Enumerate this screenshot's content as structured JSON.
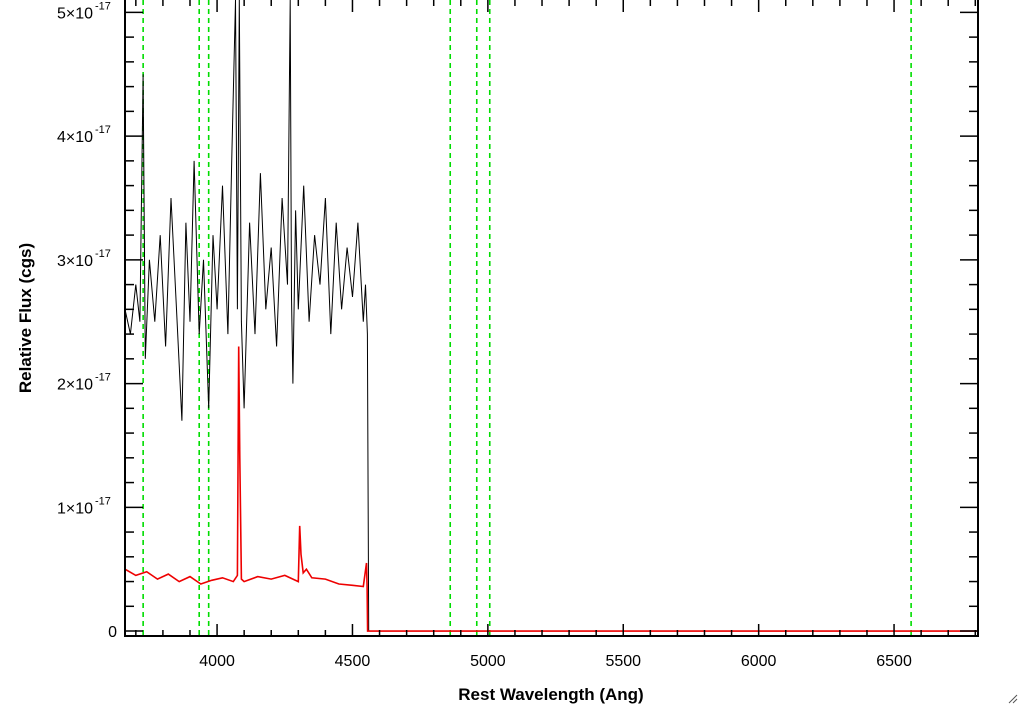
{
  "chart_data": {
    "type": "line",
    "xlabel": "Rest Wavelength (Ang)",
    "ylabel": "Relative Flux (cgs)",
    "xlim": [
      3660,
      6810
    ],
    "ylim": [
      -0.04,
      5.1
    ],
    "y_unit_exponent": -17,
    "grid": false,
    "legend": "none",
    "x_ticks": [
      {
        "value": 4000,
        "label": "4000"
      },
      {
        "value": 4500,
        "label": "4500"
      },
      {
        "value": 5000,
        "label": "5000"
      },
      {
        "value": 5500,
        "label": "5500"
      },
      {
        "value": 6000,
        "label": "6000"
      },
      {
        "value": 6500,
        "label": "6500"
      }
    ],
    "y_ticks": [
      {
        "value": 0,
        "label": "0"
      },
      {
        "value": 1,
        "label": "1×10",
        "exp": "-17"
      },
      {
        "value": 2,
        "label": "2×10",
        "exp": "-17"
      },
      {
        "value": 3,
        "label": "3×10",
        "exp": "-17"
      },
      {
        "value": 4,
        "label": "4×10",
        "exp": "-17"
      },
      {
        "value": 5,
        "label": "5×10",
        "exp": "-17"
      }
    ],
    "reference_lines": {
      "color": "#00dd00",
      "style": "dashed",
      "x": [
        3727,
        3934,
        3969,
        4861,
        4959,
        5007,
        6563
      ]
    },
    "series": [
      {
        "color": "#000000",
        "x": [
          3660,
          3680,
          3700,
          3715,
          3727,
          3735,
          3750,
          3770,
          3790,
          3810,
          3830,
          3850,
          3870,
          3885,
          3900,
          3915,
          3934,
          3950,
          3969,
          3985,
          4000,
          4020,
          4040,
          4055,
          4068,
          4075,
          4082,
          4090,
          4100,
          4120,
          4140,
          4160,
          4180,
          4200,
          4220,
          4240,
          4260,
          4270,
          4275,
          4280,
          4290,
          4300,
          4320,
          4340,
          4360,
          4380,
          4400,
          4420,
          4440,
          4460,
          4480,
          4500,
          4520,
          4540,
          4548,
          4555,
          4560
        ],
        "y": [
          2.6,
          2.4,
          2.8,
          2.5,
          4.5,
          2.2,
          3.0,
          2.5,
          3.2,
          2.3,
          3.5,
          2.6,
          1.7,
          3.3,
          2.5,
          3.8,
          2.4,
          3.0,
          1.8,
          3.2,
          2.6,
          3.6,
          2.4,
          3.9,
          5.1,
          2.6,
          5.1,
          2.5,
          1.8,
          3.3,
          2.4,
          3.7,
          2.6,
          3.1,
          2.3,
          3.5,
          2.8,
          5.1,
          2.7,
          2.0,
          3.4,
          2.6,
          3.6,
          2.5,
          3.2,
          2.8,
          3.5,
          2.4,
          3.3,
          2.6,
          3.1,
          2.7,
          3.3,
          2.5,
          2.8,
          2.4,
          0.0
        ]
      },
      {
        "color": "#ee0000",
        "x": [
          3660,
          3700,
          3740,
          3780,
          3820,
          3860,
          3900,
          3940,
          3980,
          4020,
          4060,
          4075,
          4080,
          4084,
          4090,
          4100,
          4150,
          4200,
          4250,
          4300,
          4305,
          4310,
          4318,
          4330,
          4350,
          4400,
          4450,
          4500,
          4540,
          4552,
          4554,
          4556,
          4560,
          6810
        ],
        "y": [
          0.5,
          0.45,
          0.48,
          0.42,
          0.46,
          0.4,
          0.44,
          0.38,
          0.41,
          0.43,
          0.4,
          0.45,
          2.3,
          1.4,
          0.42,
          0.4,
          0.44,
          0.42,
          0.45,
          0.4,
          0.85,
          0.62,
          0.47,
          0.5,
          0.43,
          0.42,
          0.38,
          0.37,
          0.36,
          0.55,
          0.36,
          0.0,
          0.0,
          0.0
        ]
      }
    ]
  }
}
